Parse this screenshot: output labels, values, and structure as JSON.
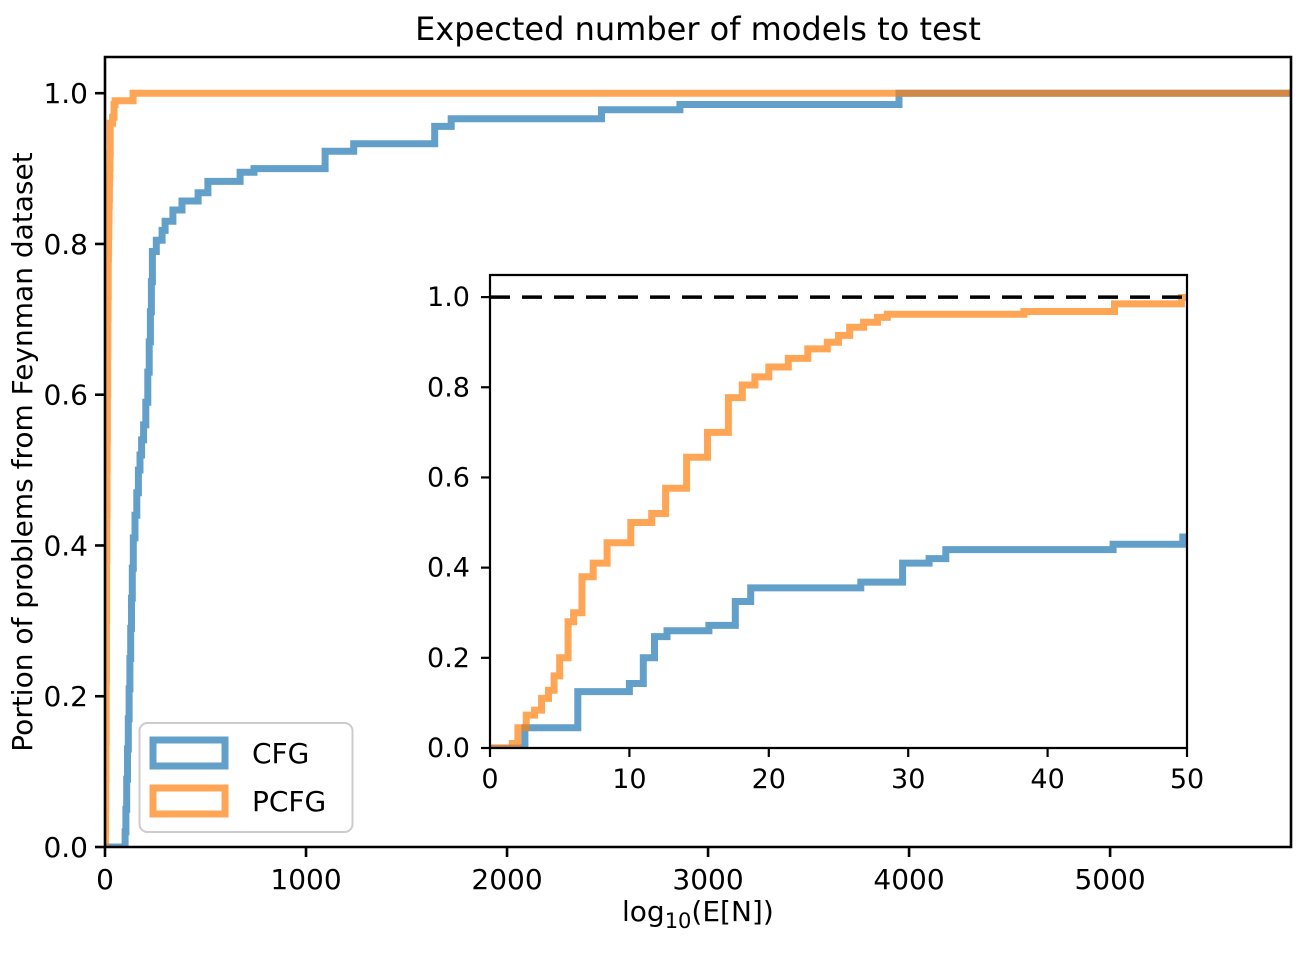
{
  "figure": {
    "title": "Expected number of models to test",
    "xlabel": {
      "prefix": "log",
      "sub": "10",
      "suffix": "(E[N])"
    },
    "ylabel": "Portion of problems from Feynman dataset",
    "background": "#ffffff"
  },
  "legend": {
    "entries": [
      {
        "label": "CFG",
        "color": "#1f77b4"
      },
      {
        "label": "PCFG",
        "color": "#ff7f0e"
      }
    ],
    "border_color": "#cccccc"
  },
  "colors": {
    "cfg_blue": "#1f77b4",
    "pcfg_orange": "#ff7f0e",
    "series_alpha": 0.7,
    "overlap_blend": "#d08946",
    "dashed_line": "#000000",
    "spine": "#000000"
  },
  "chart_data": [
    {
      "id": "main",
      "type": "line",
      "step": "post",
      "title": "Expected number of models to test",
      "xlabel": "log10(E[N])",
      "ylabel": "Portion of problems from Feynman dataset",
      "xlim": [
        0,
        5900
      ],
      "ylim": [
        0,
        1.048
      ],
      "grid": false,
      "legend_position": "lower left",
      "xticks": [
        0,
        1000,
        2000,
        3000,
        4000,
        5000
      ],
      "xtick_labels": [
        "0",
        "1000",
        "2000",
        "3000",
        "4000",
        "5000"
      ],
      "yticks": [
        0.0,
        0.2,
        0.4,
        0.6,
        0.8,
        1.0
      ],
      "ytick_labels": [
        "0.0",
        "0.2",
        "0.4",
        "0.6",
        "0.8",
        "1.0"
      ],
      "series": [
        {
          "name": "CFG",
          "color": "#1f77b4",
          "alpha": 0.7,
          "points": [
            [
              0,
              0
            ],
            [
              100,
              0.02
            ],
            [
              104,
              0.05
            ],
            [
              108,
              0.09
            ],
            [
              112,
              0.13
            ],
            [
              116,
              0.17
            ],
            [
              120,
              0.21
            ],
            [
              124,
              0.25
            ],
            [
              128,
              0.29
            ],
            [
              132,
              0.33
            ],
            [
              136,
              0.37
            ],
            [
              141,
              0.41
            ],
            [
              149,
              0.44
            ],
            [
              158,
              0.47
            ],
            [
              166,
              0.5
            ],
            [
              174,
              0.52
            ],
            [
              182,
              0.54
            ],
            [
              192,
              0.56
            ],
            [
              203,
              0.59
            ],
            [
              213,
              0.63
            ],
            [
              220,
              0.67
            ],
            [
              226,
              0.71
            ],
            [
              231,
              0.75
            ],
            [
              236,
              0.79
            ],
            [
              255,
              0.805
            ],
            [
              284,
              0.818
            ],
            [
              299,
              0.83
            ],
            [
              338,
              0.845
            ],
            [
              383,
              0.857
            ],
            [
              463,
              0.868
            ],
            [
              512,
              0.883
            ],
            [
              672,
              0.895
            ],
            [
              741,
              0.9
            ],
            [
              1095,
              0.923
            ],
            [
              1237,
              0.933
            ],
            [
              1640,
              0.956
            ],
            [
              1722,
              0.966
            ],
            [
              2470,
              0.978
            ],
            [
              2860,
              0.985
            ],
            [
              3950,
              1.0
            ]
          ]
        },
        {
          "name": "PCFG",
          "color": "#ff7f0e",
          "alpha": 0.7,
          "points": [
            [
              0,
              0
            ],
            [
              2,
              0.02
            ],
            [
              3,
              0.05
            ],
            [
              4,
              0.09
            ],
            [
              5,
              0.14
            ],
            [
              6,
              0.22
            ],
            [
              7,
              0.3
            ],
            [
              8,
              0.38
            ],
            [
              9,
              0.44
            ],
            [
              10,
              0.5
            ],
            [
              11,
              0.54
            ],
            [
              12,
              0.6
            ],
            [
              13,
              0.65
            ],
            [
              14,
              0.7
            ],
            [
              15,
              0.73
            ],
            [
              16,
              0.78
            ],
            [
              17,
              0.79
            ],
            [
              18,
              0.81
            ],
            [
              19,
              0.83
            ],
            [
              20,
              0.85
            ],
            [
              21,
              0.86
            ],
            [
              22,
              0.88
            ],
            [
              23,
              0.89
            ],
            [
              24,
              0.9
            ],
            [
              25,
              0.92
            ],
            [
              26,
              0.96
            ],
            [
              38,
              0.968
            ],
            [
              45,
              0.985
            ],
            [
              50,
              0.99
            ],
            [
              140,
              1.0
            ]
          ]
        }
      ]
    },
    {
      "id": "inset",
      "type": "line",
      "step": "post",
      "xlim": [
        0,
        50
      ],
      "ylim": [
        0,
        1.049
      ],
      "grid": false,
      "reference_line_y": 1.0,
      "reference_line_style": "dashed",
      "xticks": [
        0,
        10,
        20,
        30,
        40,
        50
      ],
      "xtick_labels": [
        "0",
        "10",
        "20",
        "30",
        "40",
        "50"
      ],
      "yticks": [
        0.0,
        0.2,
        0.4,
        0.6,
        0.8,
        1.0
      ],
      "ytick_labels": [
        "0.0",
        "0.2",
        "0.4",
        "0.6",
        "0.8",
        "1.0"
      ],
      "series": [
        {
          "name": "CFG",
          "color": "#1f77b4",
          "alpha": 0.7,
          "points": [
            [
              0,
              0
            ],
            [
              2.5,
              0.045
            ],
            [
              6.3,
              0.125
            ],
            [
              10,
              0.143
            ],
            [
              11,
              0.2
            ],
            [
              11.8,
              0.247
            ],
            [
              12.7,
              0.26
            ],
            [
              15.7,
              0.272
            ],
            [
              17.6,
              0.325
            ],
            [
              18.7,
              0.355
            ],
            [
              26.6,
              0.368
            ],
            [
              29.6,
              0.41
            ],
            [
              31.5,
              0.42
            ],
            [
              32.7,
              0.44
            ],
            [
              44.7,
              0.452
            ],
            [
              49.7,
              0.468
            ]
          ]
        },
        {
          "name": "PCFG",
          "color": "#ff7f0e",
          "alpha": 0.7,
          "points": [
            [
              0,
              0
            ],
            [
              1.6,
              0.01
            ],
            [
              2,
              0.045
            ],
            [
              2.6,
              0.073
            ],
            [
              3.2,
              0.084
            ],
            [
              3.7,
              0.11
            ],
            [
              4.2,
              0.128
            ],
            [
              4.6,
              0.16
            ],
            [
              5,
              0.2
            ],
            [
              5.6,
              0.28
            ],
            [
              6,
              0.3
            ],
            [
              6.6,
              0.38
            ],
            [
              7.4,
              0.41
            ],
            [
              8.4,
              0.455
            ],
            [
              10.1,
              0.5
            ],
            [
              11.6,
              0.52
            ],
            [
              12.6,
              0.576
            ],
            [
              14.1,
              0.645
            ],
            [
              15.6,
              0.7
            ],
            [
              17.1,
              0.777
            ],
            [
              18.1,
              0.805
            ],
            [
              19,
              0.823
            ],
            [
              20,
              0.845
            ],
            [
              21.4,
              0.864
            ],
            [
              22.8,
              0.885
            ],
            [
              24.2,
              0.9
            ],
            [
              25,
              0.915
            ],
            [
              25.8,
              0.933
            ],
            [
              26.8,
              0.944
            ],
            [
              27.8,
              0.955
            ],
            [
              28.5,
              0.962
            ],
            [
              38.3,
              0.968
            ],
            [
              44.8,
              0.985
            ],
            [
              49.6,
              0.999
            ]
          ]
        }
      ]
    }
  ]
}
